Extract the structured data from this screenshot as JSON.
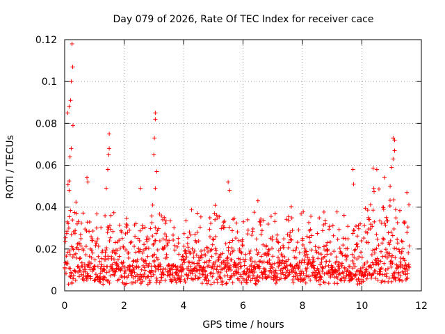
{
  "chart_data": {
    "type": "scatter",
    "title": "Day 079 of 2026, Rate Of TEC Index for receiver cace",
    "xlabel": "GPS time / hours",
    "ylabel": "ROTI / TECUs",
    "xlim": [
      0,
      12
    ],
    "ylim": [
      0,
      0.12
    ],
    "xticks": [
      0,
      2,
      4,
      6,
      8,
      10,
      12
    ],
    "yticks": [
      0,
      0.02,
      0.04,
      0.06,
      0.08,
      0.1,
      0.12
    ],
    "xtick_labels": [
      "0",
      "2",
      "4",
      "6",
      "8",
      "10",
      "12"
    ],
    "ytick_labels": [
      "0",
      "0.02",
      "0.04",
      "0.06",
      "0.08",
      "0.1",
      "0.12"
    ],
    "grid": true,
    "marker": "+",
    "marker_color": "#ff0000",
    "data_range_x": [
      0,
      11.6
    ],
    "series": [
      {
        "name": "ROTI",
        "highlight_points": [
          {
            "x": 0.1,
            "y": 0.085
          },
          {
            "x": 0.15,
            "y": 0.088
          },
          {
            "x": 0.2,
            "y": 0.091
          },
          {
            "x": 0.22,
            "y": 0.1
          },
          {
            "x": 0.25,
            "y": 0.118
          },
          {
            "x": 0.27,
            "y": 0.107
          },
          {
            "x": 0.28,
            "y": 0.079
          },
          {
            "x": 0.22,
            "y": 0.068
          },
          {
            "x": 0.18,
            "y": 0.064
          },
          {
            "x": 0.15,
            "y": 0.048
          },
          {
            "x": 0.75,
            "y": 0.054
          },
          {
            "x": 0.78,
            "y": 0.052
          },
          {
            "x": 1.5,
            "y": 0.075
          },
          {
            "x": 1.5,
            "y": 0.068
          },
          {
            "x": 1.48,
            "y": 0.065
          },
          {
            "x": 1.45,
            "y": 0.058
          },
          {
            "x": 1.4,
            "y": 0.049
          },
          {
            "x": 2.55,
            "y": 0.049
          },
          {
            "x": 3.05,
            "y": 0.085
          },
          {
            "x": 3.05,
            "y": 0.082
          },
          {
            "x": 3.02,
            "y": 0.073
          },
          {
            "x": 3.0,
            "y": 0.065
          },
          {
            "x": 3.1,
            "y": 0.057
          },
          {
            "x": 3.05,
            "y": 0.049
          },
          {
            "x": 5.5,
            "y": 0.052
          },
          {
            "x": 5.55,
            "y": 0.048
          },
          {
            "x": 6.5,
            "y": 0.043
          },
          {
            "x": 9.7,
            "y": 0.058
          },
          {
            "x": 9.72,
            "y": 0.051
          },
          {
            "x": 10.5,
            "y": 0.058
          },
          {
            "x": 10.4,
            "y": 0.049
          },
          {
            "x": 11.05,
            "y": 0.073
          },
          {
            "x": 11.1,
            "y": 0.072
          },
          {
            "x": 11.1,
            "y": 0.067
          },
          {
            "x": 11.05,
            "y": 0.063
          },
          {
            "x": 11.0,
            "y": 0.059
          },
          {
            "x": 10.95,
            "y": 0.05
          }
        ]
      }
    ]
  }
}
